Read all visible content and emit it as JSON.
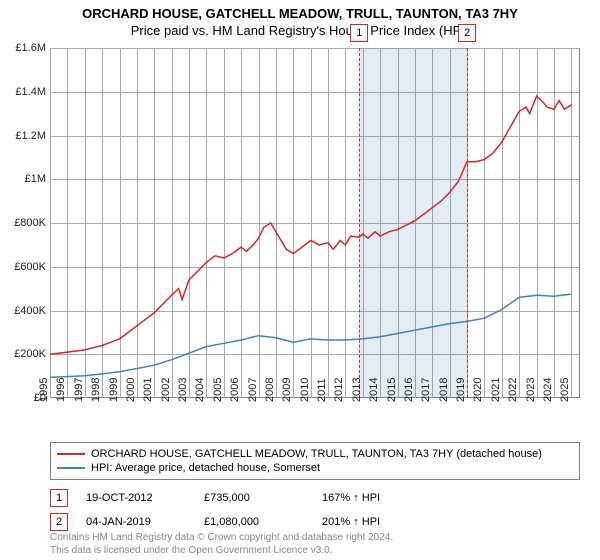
{
  "title": "ORCHARD HOUSE, GATCHELL MEADOW, TRULL, TAUNTON, TA3 7HY",
  "subtitle": "Price paid vs. HM Land Registry's House Price Index (HPI)",
  "chart": {
    "type": "line",
    "background_color": "#ffffff",
    "grid_color": "#aaaaaa",
    "border_color": "#808080",
    "y": {
      "min": 0,
      "max": 1600000,
      "step": 200000,
      "labels": [
        "£0",
        "£200K",
        "£400K",
        "£600K",
        "£800K",
        "£1M",
        "£1.2M",
        "£1.4M",
        "£1.6M"
      ]
    },
    "x": {
      "min": 1995,
      "max": 2025.5,
      "step": 1,
      "labels": [
        "1995",
        "1996",
        "1997",
        "1998",
        "1999",
        "2000",
        "2001",
        "2002",
        "2003",
        "2004",
        "2005",
        "2006",
        "2007",
        "2008",
        "2009",
        "2010",
        "2011",
        "2012",
        "2013",
        "2014",
        "2015",
        "2016",
        "2017",
        "2018",
        "2019",
        "2020",
        "2021",
        "2022",
        "2023",
        "2024",
        "2025"
      ]
    },
    "series": [
      {
        "name": "ORCHARD HOUSE, GATCHELL MEADOW, TRULL, TAUNTON, TA3 7HY (detached house)",
        "color": "#d62728",
        "line_width": 1.5,
        "data": [
          [
            1995,
            200000
          ],
          [
            1995.5,
            205000
          ],
          [
            1996,
            210000
          ],
          [
            1996.5,
            215000
          ],
          [
            1997,
            220000
          ],
          [
            1997.5,
            230000
          ],
          [
            1998,
            240000
          ],
          [
            1998.5,
            255000
          ],
          [
            1999,
            270000
          ],
          [
            1999.5,
            300000
          ],
          [
            2000,
            330000
          ],
          [
            2000.5,
            360000
          ],
          [
            2001,
            390000
          ],
          [
            2001.5,
            430000
          ],
          [
            2002,
            470000
          ],
          [
            2002.4,
            500000
          ],
          [
            2002.6,
            450000
          ],
          [
            2003,
            540000
          ],
          [
            2003.5,
            580000
          ],
          [
            2004,
            620000
          ],
          [
            2004.5,
            650000
          ],
          [
            2005,
            640000
          ],
          [
            2005.5,
            660000
          ],
          [
            2006,
            690000
          ],
          [
            2006.3,
            670000
          ],
          [
            2006.7,
            700000
          ],
          [
            2007,
            730000
          ],
          [
            2007.3,
            780000
          ],
          [
            2007.7,
            800000
          ],
          [
            2008,
            760000
          ],
          [
            2008.3,
            720000
          ],
          [
            2008.6,
            680000
          ],
          [
            2009,
            660000
          ],
          [
            2009.5,
            690000
          ],
          [
            2010,
            720000
          ],
          [
            2010.5,
            700000
          ],
          [
            2011,
            710000
          ],
          [
            2011.3,
            680000
          ],
          [
            2011.7,
            720000
          ],
          [
            2012,
            700000
          ],
          [
            2012.3,
            740000
          ],
          [
            2012.8,
            735000
          ],
          [
            2013,
            750000
          ],
          [
            2013.3,
            730000
          ],
          [
            2013.7,
            760000
          ],
          [
            2014,
            740000
          ],
          [
            2014.5,
            760000
          ],
          [
            2015,
            770000
          ],
          [
            2015.5,
            790000
          ],
          [
            2016,
            810000
          ],
          [
            2016.5,
            840000
          ],
          [
            2017,
            870000
          ],
          [
            2017.5,
            900000
          ],
          [
            2018,
            940000
          ],
          [
            2018.5,
            990000
          ],
          [
            2019,
            1080000
          ],
          [
            2019.5,
            1080000
          ],
          [
            2020,
            1090000
          ],
          [
            2020.5,
            1120000
          ],
          [
            2021,
            1170000
          ],
          [
            2021.5,
            1240000
          ],
          [
            2022,
            1310000
          ],
          [
            2022.4,
            1330000
          ],
          [
            2022.6,
            1300000
          ],
          [
            2023,
            1380000
          ],
          [
            2023.4,
            1350000
          ],
          [
            2023.6,
            1330000
          ],
          [
            2024,
            1320000
          ],
          [
            2024.3,
            1360000
          ],
          [
            2024.6,
            1320000
          ],
          [
            2025,
            1340000
          ]
        ]
      },
      {
        "name": "HPI: Average price, detached house, Somerset",
        "color": "#4682b4",
        "line_width": 1.5,
        "data": [
          [
            1995,
            95000
          ],
          [
            1996,
            98000
          ],
          [
            1997,
            102000
          ],
          [
            1998,
            110000
          ],
          [
            1999,
            120000
          ],
          [
            2000,
            135000
          ],
          [
            2001,
            150000
          ],
          [
            2002,
            175000
          ],
          [
            2003,
            205000
          ],
          [
            2004,
            235000
          ],
          [
            2005,
            250000
          ],
          [
            2006,
            265000
          ],
          [
            2007,
            285000
          ],
          [
            2008,
            275000
          ],
          [
            2009,
            255000
          ],
          [
            2010,
            270000
          ],
          [
            2011,
            265000
          ],
          [
            2012,
            265000
          ],
          [
            2013,
            270000
          ],
          [
            2014,
            280000
          ],
          [
            2015,
            295000
          ],
          [
            2016,
            310000
          ],
          [
            2017,
            325000
          ],
          [
            2018,
            340000
          ],
          [
            2019,
            350000
          ],
          [
            2020,
            365000
          ],
          [
            2021,
            405000
          ],
          [
            2022,
            460000
          ],
          [
            2023,
            470000
          ],
          [
            2024,
            465000
          ],
          [
            2025,
            475000
          ]
        ]
      }
    ],
    "markers": [
      {
        "n": "1",
        "date": 2012.8,
        "color": "#d62728"
      },
      {
        "n": "2",
        "date": 2019.01,
        "color": "#d62728"
      }
    ],
    "shade": {
      "from": 2012.8,
      "to": 2019.01,
      "color": "rgba(70,130,180,0.15)"
    }
  },
  "legend": [
    {
      "color": "#d62728",
      "label": "ORCHARD HOUSE, GATCHELL MEADOW, TRULL, TAUNTON, TA3 7HY (detached house)"
    },
    {
      "color": "#4682b4",
      "label": "HPI: Average price, detached house, Somerset"
    }
  ],
  "sales": [
    {
      "n": "1",
      "color": "#d62728",
      "date": "19-OCT-2012",
      "price": "£735,000",
      "pct": "167% ↑ HPI"
    },
    {
      "n": "2",
      "color": "#d62728",
      "date": "04-JAN-2019",
      "price": "£1,080,000",
      "pct": "201% ↑ HPI"
    }
  ],
  "footer": {
    "line1": "Contains HM Land Registry data © Crown copyright and database right 2024.",
    "line2": "This data is licensed under the Open Government Licence v3.0."
  }
}
